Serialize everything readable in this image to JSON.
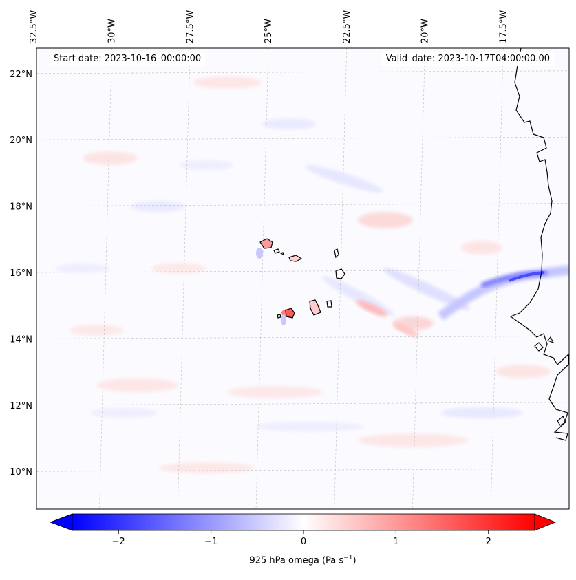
{
  "start_date": "Start date: 2023-10-16_00:00:00",
  "valid_date": "Valid_date: 2023-10-17T04:00:00.00",
  "lon_labels": [
    {
      "lon": -32.5,
      "text": "32.5°W"
    },
    {
      "lon": -30,
      "text": "30°W"
    },
    {
      "lon": -27.5,
      "text": "27.5°W"
    },
    {
      "lon": -25,
      "text": "25°W"
    },
    {
      "lon": -22.5,
      "text": "22.5°W"
    },
    {
      "lon": -20,
      "text": "20°W"
    },
    {
      "lon": -17.5,
      "text": "17.5°W"
    }
  ],
  "lat_labels": [
    {
      "lat": 22,
      "text": "22°N"
    },
    {
      "lat": 20,
      "text": "20°N"
    },
    {
      "lat": 18,
      "text": "18°N"
    },
    {
      "lat": 16,
      "text": "16°N"
    },
    {
      "lat": 14,
      "text": "14°N"
    },
    {
      "lat": 12,
      "text": "12°N"
    },
    {
      "lat": 10,
      "text": "10°N"
    }
  ],
  "colorbar": {
    "label_text": "925 hPa omega (Pa s",
    "label_sup": "−1",
    "label_close": ")",
    "min": -2.5,
    "max": 2.5,
    "ticks": [
      {
        "value": -2,
        "text": "−2"
      },
      {
        "value": -1,
        "text": "−1"
      },
      {
        "value": 0,
        "text": "0"
      },
      {
        "value": 1,
        "text": "1"
      },
      {
        "value": 2,
        "text": "2"
      }
    ],
    "low_color": "#0000ff",
    "mid_color": "#ffffff",
    "high_color": "#ff0000",
    "extend": "both"
  },
  "coastline_color": "#000000",
  "gridline_color": "#bbbbbb"
}
